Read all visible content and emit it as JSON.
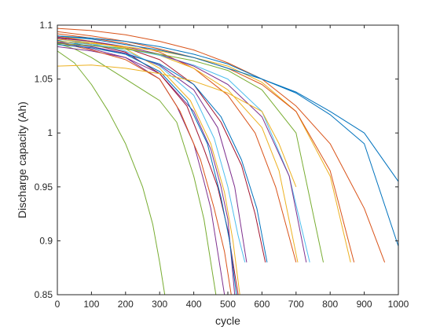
{
  "chart_data": {
    "type": "line",
    "title": "",
    "xlabel": "cycle",
    "ylabel": "Discharge capacity (Ah)",
    "xlim": [
      0,
      1000
    ],
    "ylim": [
      0.85,
      1.1
    ],
    "xticks": [
      0,
      100,
      200,
      300,
      400,
      500,
      600,
      700,
      800,
      900,
      1000
    ],
    "yticks": [
      0.85,
      0.9,
      0.95,
      1,
      1.05,
      1.1
    ],
    "xtick_labels": [
      "0",
      "100",
      "200",
      "300",
      "400",
      "500",
      "600",
      "700",
      "800",
      "900",
      "1000"
    ],
    "ytick_labels": [
      "0.85",
      "0.9",
      "0.95",
      "1",
      "1.05",
      "1.1"
    ],
    "grid": false,
    "legend": "none",
    "series": [
      {
        "color": "#77AC30",
        "x": [
          0,
          50,
          100,
          150,
          200,
          250,
          280,
          300,
          315
        ],
        "y": [
          1.076,
          1.065,
          1.045,
          1.02,
          0.99,
          0.95,
          0.915,
          0.88,
          0.85
        ]
      },
      {
        "color": "#77AC30",
        "x": [
          0,
          50,
          100,
          150,
          200,
          250,
          300,
          350,
          400,
          430,
          450,
          465
        ],
        "y": [
          1.083,
          1.078,
          1.07,
          1.06,
          1.05,
          1.04,
          1.03,
          1.01,
          0.96,
          0.92,
          0.88,
          0.85
        ]
      },
      {
        "color": "#7E2F8E",
        "x": [
          0,
          100,
          200,
          300,
          350,
          400,
          430,
          450,
          470,
          490
        ],
        "y": [
          1.085,
          1.078,
          1.07,
          1.05,
          1.025,
          0.99,
          0.955,
          0.93,
          0.89,
          0.85
        ]
      },
      {
        "color": "#7E2F8E",
        "x": [
          0,
          100,
          200,
          300,
          400,
          450,
          480,
          500,
          520
        ],
        "y": [
          1.08,
          1.076,
          1.07,
          1.055,
          1.02,
          0.985,
          0.95,
          0.92,
          0.85
        ]
      },
      {
        "color": "#A2142F",
        "x": [
          0,
          100,
          200,
          300,
          380,
          430,
          470,
          500,
          530
        ],
        "y": [
          1.088,
          1.082,
          1.075,
          1.055,
          1.025,
          0.985,
          0.95,
          0.91,
          0.85
        ]
      },
      {
        "color": "#0072BD",
        "x": [
          0,
          100,
          200,
          300,
          380,
          440,
          480,
          505,
          525
        ],
        "y": [
          1.086,
          1.08,
          1.073,
          1.057,
          1.03,
          0.99,
          0.94,
          0.9,
          0.85
        ]
      },
      {
        "color": "#D95319",
        "x": [
          0,
          100,
          200,
          300,
          360,
          420,
          460,
          490,
          510
        ],
        "y": [
          1.084,
          1.077,
          1.068,
          1.05,
          1.02,
          0.975,
          0.93,
          0.89,
          0.85
        ]
      },
      {
        "color": "#EDB120",
        "x": [
          0,
          100,
          200,
          300,
          390,
          450,
          490,
          515,
          535
        ],
        "y": [
          1.09,
          1.085,
          1.078,
          1.06,
          1.03,
          0.99,
          0.945,
          0.9,
          0.85
        ]
      },
      {
        "color": "#4DBEEE",
        "x": [
          0,
          100,
          200,
          300,
          400,
          460,
          500,
          530,
          550
        ],
        "y": [
          1.087,
          1.083,
          1.076,
          1.062,
          1.035,
          0.995,
          0.95,
          0.905,
          0.88
        ]
      },
      {
        "color": "#7E2F8E",
        "x": [
          0,
          100,
          200,
          300,
          400,
          470,
          520,
          555
        ],
        "y": [
          1.084,
          1.08,
          1.074,
          1.063,
          1.04,
          1.005,
          0.95,
          0.88
        ]
      },
      {
        "color": "#A2142F",
        "x": [
          0,
          100,
          200,
          300,
          400,
          480,
          540,
          580,
          610
        ],
        "y": [
          1.089,
          1.085,
          1.079,
          1.068,
          1.045,
          1.01,
          0.97,
          0.925,
          0.88
        ]
      },
      {
        "color": "#0072BD",
        "x": [
          0,
          100,
          200,
          300,
          400,
          480,
          540,
          585,
          615
        ],
        "y": [
          1.082,
          1.079,
          1.073,
          1.064,
          1.045,
          1.015,
          0.975,
          0.93,
          0.88
        ]
      },
      {
        "color": "#D95319",
        "x": [
          0,
          100,
          200,
          300,
          400,
          500,
          580,
          640,
          700
        ],
        "y": [
          1.092,
          1.088,
          1.083,
          1.075,
          1.06,
          1.035,
          1.0,
          0.95,
          0.88
        ]
      },
      {
        "color": "#EDB120",
        "x": [
          0,
          100,
          200,
          300,
          400,
          500,
          600,
          650,
          705
        ],
        "y": [
          1.087,
          1.084,
          1.079,
          1.072,
          1.06,
          1.04,
          1.005,
          0.965,
          0.88
        ]
      },
      {
        "color": "#4DBEEE",
        "x": [
          0,
          100,
          200,
          300,
          400,
          500,
          600,
          680,
          740
        ],
        "y": [
          1.085,
          1.082,
          1.078,
          1.072,
          1.063,
          1.05,
          1.02,
          0.96,
          0.88
        ]
      },
      {
        "color": "#7E2F8E",
        "x": [
          0,
          100,
          200,
          300,
          400,
          500,
          600,
          680,
          730
        ],
        "y": [
          1.088,
          1.085,
          1.08,
          1.073,
          1.062,
          1.045,
          1.015,
          0.96,
          0.88
        ]
      },
      {
        "color": "#77AC30",
        "x": [
          0,
          100,
          200,
          300,
          400,
          500,
          600,
          700,
          780
        ],
        "y": [
          1.083,
          1.081,
          1.078,
          1.073,
          1.067,
          1.058,
          1.04,
          1.0,
          0.88
        ]
      },
      {
        "color": "#EDB120",
        "x": [
          0,
          100,
          200,
          300,
          400,
          500,
          600,
          700,
          800,
          860
        ],
        "y": [
          1.085,
          1.083,
          1.08,
          1.076,
          1.07,
          1.062,
          1.047,
          1.02,
          0.96,
          0.88
        ]
      },
      {
        "color": "#D95319",
        "x": [
          0,
          100,
          200,
          300,
          400,
          500,
          600,
          700,
          800,
          870
        ],
        "y": [
          1.094,
          1.09,
          1.085,
          1.078,
          1.07,
          1.06,
          1.045,
          1.02,
          0.965,
          0.88
        ]
      },
      {
        "color": "#D95319",
        "x": [
          0,
          100,
          200,
          300,
          400,
          500,
          600,
          700,
          800,
          900,
          960
        ],
        "y": [
          1.097,
          1.095,
          1.091,
          1.085,
          1.077,
          1.065,
          1.05,
          1.025,
          0.99,
          0.93,
          0.88
        ]
      },
      {
        "color": "#0072BD",
        "x": [
          0,
          100,
          200,
          300,
          400,
          500,
          600,
          700,
          800,
          900,
          1000
        ],
        "y": [
          1.09,
          1.088,
          1.085,
          1.08,
          1.073,
          1.064,
          1.05,
          1.037,
          1.017,
          0.99,
          0.895
        ]
      },
      {
        "color": "#0072BD",
        "x": [
          0,
          100,
          200,
          300,
          400,
          500,
          600,
          700,
          800,
          900,
          1000
        ],
        "y": [
          1.09,
          1.087,
          1.082,
          1.077,
          1.07,
          1.06,
          1.05,
          1.038,
          1.02,
          1.0,
          0.955
        ]
      },
      {
        "color": "#EDB120",
        "x": [
          0,
          100,
          200,
          300,
          400,
          500,
          600,
          650,
          700
        ],
        "y": [
          1.062,
          1.063,
          1.06,
          1.055,
          1.048,
          1.037,
          1.02,
          0.99,
          0.95
        ]
      }
    ]
  }
}
